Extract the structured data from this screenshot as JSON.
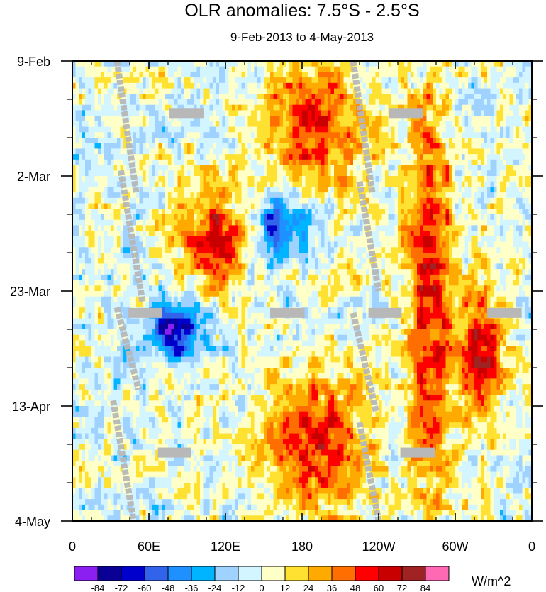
{
  "chart_data": {
    "type": "heatmap",
    "title": "OLR anomalies: 7.5°S - 2.5°S",
    "subtitle": "9-Feb-2013 to 4-May-2013",
    "xlabel": "",
    "ylabel": "",
    "x_range_deg_east": [
      0,
      360
    ],
    "y_range_days": [
      0,
      84
    ],
    "y_direction": "time increases downward",
    "x_ticks": [
      {
        "deg": 0,
        "label": "0"
      },
      {
        "deg": 60,
        "label": "60E"
      },
      {
        "deg": 120,
        "label": "120E"
      },
      {
        "deg": 180,
        "label": "180"
      },
      {
        "deg": 240,
        "label": "120W"
      },
      {
        "deg": 300,
        "label": "60W"
      },
      {
        "deg": 360,
        "label": "0"
      }
    ],
    "y_ticks": [
      {
        "day": 0,
        "label": "9-Feb"
      },
      {
        "day": 21,
        "label": "2-Mar"
      },
      {
        "day": 42,
        "label": "23-Mar"
      },
      {
        "day": 63,
        "label": "13-Apr"
      },
      {
        "day": 84,
        "label": "4-May"
      }
    ],
    "colorbar": {
      "units": "W/m^2",
      "levels": [
        -84,
        -72,
        -60,
        -48,
        -36,
        -24,
        -12,
        0,
        12,
        24,
        36,
        48,
        60,
        72,
        84
      ],
      "colors": [
        "#8b1ef0",
        "#0a0096",
        "#0000cd",
        "#3264eb",
        "#1e90ff",
        "#00b4ff",
        "#a0d2ff",
        "#d2f5ff",
        "#ffffc8",
        "#ffe132",
        "#ffaa00",
        "#ff6e00",
        "#ff0000",
        "#c80000",
        "#a02323",
        "#ff69b4"
      ]
    },
    "dominant_patterns": [
      {
        "name": "negative anomaly core",
        "lon_deg": [
          55,
          105
        ],
        "day_range": [
          44,
          55
        ],
        "min_value": -84
      },
      {
        "name": "negative anomaly",
        "lon_deg": [
          140,
          190
        ],
        "day_range": [
          24,
          36
        ],
        "min_value": -60
      },
      {
        "name": "positive anomaly",
        "lon_deg": [
          150,
          230
        ],
        "day_range": [
          0,
          24
        ],
        "max_value": 60
      },
      {
        "name": "positive anomaly",
        "lon_deg": [
          80,
          140
        ],
        "day_range": [
          23,
          42
        ],
        "max_value": 60
      },
      {
        "name": "positive anomaly",
        "lon_deg": [
          300,
          340
        ],
        "day_range": [
          40,
          66
        ],
        "max_value": 72
      },
      {
        "name": "positive anomaly",
        "lon_deg": [
          260,
          300
        ],
        "day_range": [
          0,
          84
        ],
        "max_value": 60
      },
      {
        "name": "positive anomaly",
        "lon_deg": [
          150,
          230
        ],
        "day_range": [
          56,
          84
        ],
        "max_value": 60
      }
    ],
    "missing_data": "grey diagonal streaks and short horizontal bars"
  }
}
